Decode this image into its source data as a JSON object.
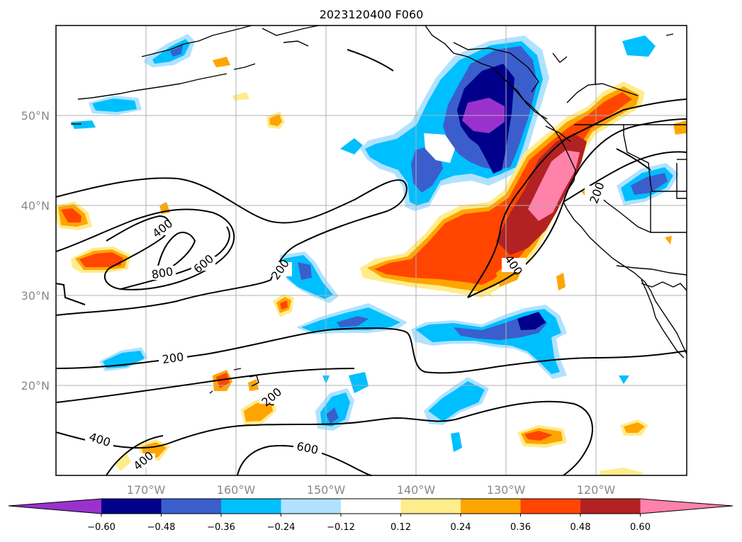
{
  "title": "2023120400 F060",
  "latitude_labels": [
    "50°N",
    "40°N",
    "30°N",
    "20°N"
  ],
  "longitude_labels": [
    "170°W",
    "160°W",
    "150°W",
    "140°W",
    "130°W",
    "120°W"
  ],
  "colorbar": {
    "ticks": [
      "−0.60",
      "−0.48",
      "−0.36",
      "−0.24",
      "−0.12",
      "0.12",
      "0.24",
      "0.36",
      "0.48",
      "0.60"
    ],
    "colors": [
      "#9932cc",
      "#00008b",
      "#3a5fcd",
      "#00bfff",
      "#b0e2ff",
      "#ffffff",
      "#ffec8b",
      "#ffa500",
      "#ff4500",
      "#b22222",
      "#ff82ab"
    ]
  },
  "contour_labels": [
    "400",
    "600",
    "800",
    "200",
    "400",
    "200",
    "200",
    "400",
    "600",
    "400",
    "200"
  ],
  "colors": {
    "contour": "#000000",
    "coast": "#000000",
    "grid": "#b0b0b0",
    "label_gray": "#888888"
  }
}
